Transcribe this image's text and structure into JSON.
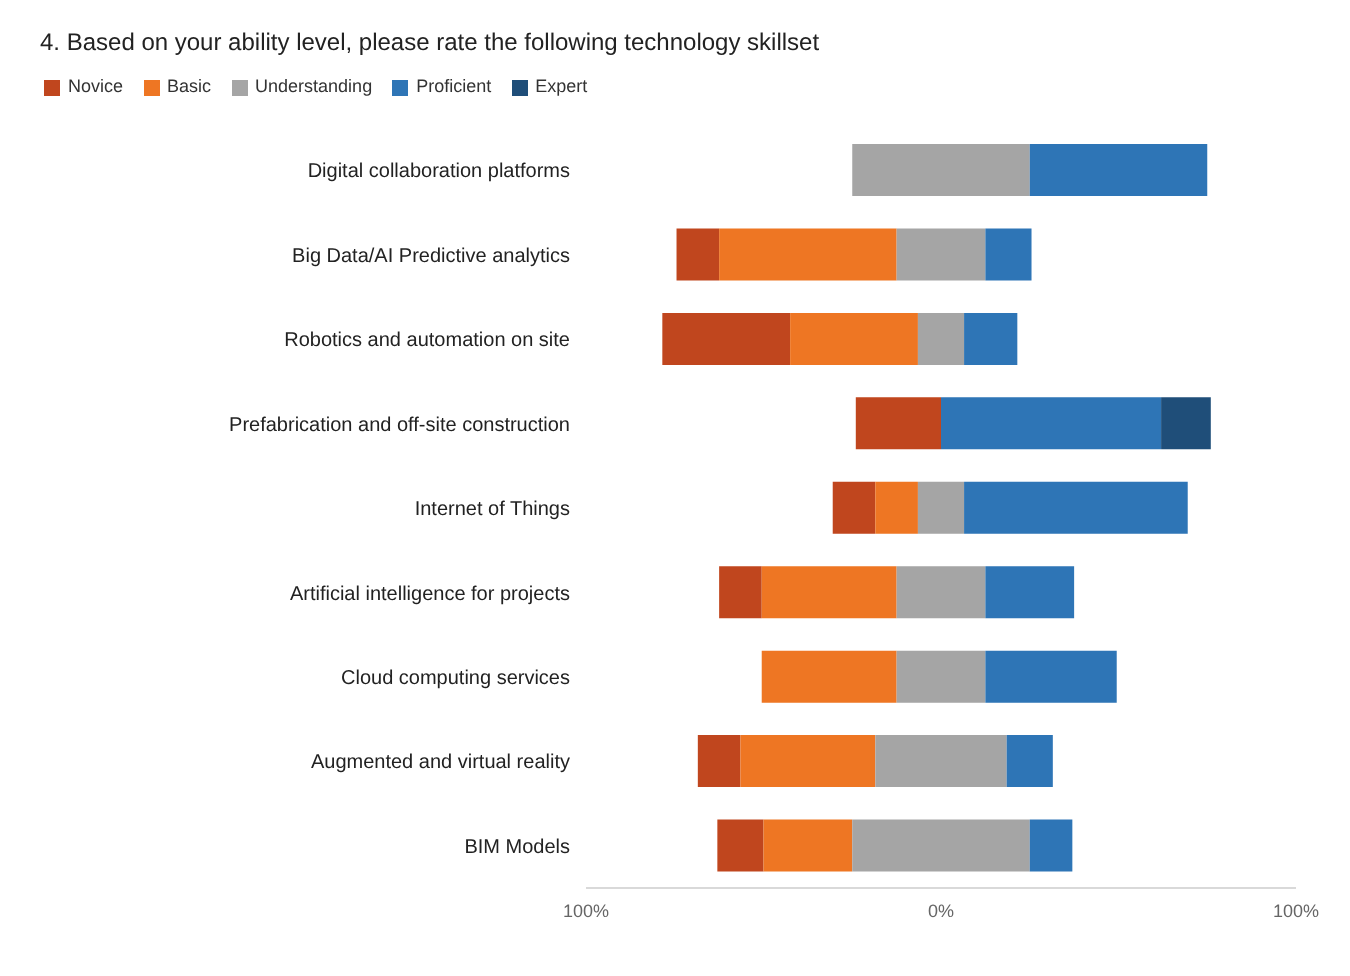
{
  "chart_data": {
    "type": "bar",
    "orientation": "horizontal",
    "title": "4. Based on your ability level, please rate the following technology skillset",
    "categories": [
      "Digital collaboration platforms",
      "Big Data/AI Predictive analytics",
      "Robotics and automation on site",
      "Prefabrication and off-site construction",
      "Internet of Things",
      "Artificial intelligence for projects",
      "Cloud computing services",
      "Augmented and virtual reality",
      "BIM Models"
    ],
    "series": [
      {
        "name": "Novice",
        "color": "#c0461e",
        "values": [
          null,
          12,
          36,
          24,
          12,
          12,
          null,
          12,
          13
        ],
        "base": [
          null,
          -74.5,
          -78.5,
          -24,
          -30.5,
          -62.5,
          null,
          -68.5,
          -63
        ]
      },
      {
        "name": "Basic",
        "color": "#ee7623",
        "values": [
          null,
          50,
          36,
          null,
          12,
          38,
          38,
          38,
          25
        ],
        "base": [
          null,
          -62.5,
          -42.5,
          null,
          -18.5,
          -50.5,
          -50.5,
          -56.5,
          -50
        ]
      },
      {
        "name": "Understanding",
        "color": "#a5a5a5",
        "values": [
          50,
          25,
          13,
          null,
          13,
          25,
          25,
          37,
          50
        ],
        "base": [
          -25,
          -12.5,
          -6.5,
          null,
          -6.5,
          -12.5,
          -12.5,
          -18.5,
          -25
        ]
      },
      {
        "name": "Proficient",
        "color": "#2e75b6",
        "values": [
          50,
          13,
          15,
          62,
          63,
          25,
          37,
          13,
          12
        ],
        "base": [
          25,
          12.5,
          6.5,
          0,
          6.5,
          12.5,
          12.5,
          18.5,
          25
        ]
      },
      {
        "name": "Expert",
        "color": "#1f4e79",
        "values": [
          null,
          null,
          null,
          14,
          null,
          null,
          null,
          null,
          null
        ],
        "base": [
          null,
          null,
          null,
          62,
          null,
          null,
          null,
          null,
          null
        ]
      }
    ],
    "xlim": [
      -100,
      100
    ],
    "xticks": [
      {
        "value": -100,
        "label": "100%"
      },
      {
        "value": 0,
        "label": "0%"
      },
      {
        "value": 100,
        "label": "100%"
      }
    ],
    "legend": "top left"
  }
}
